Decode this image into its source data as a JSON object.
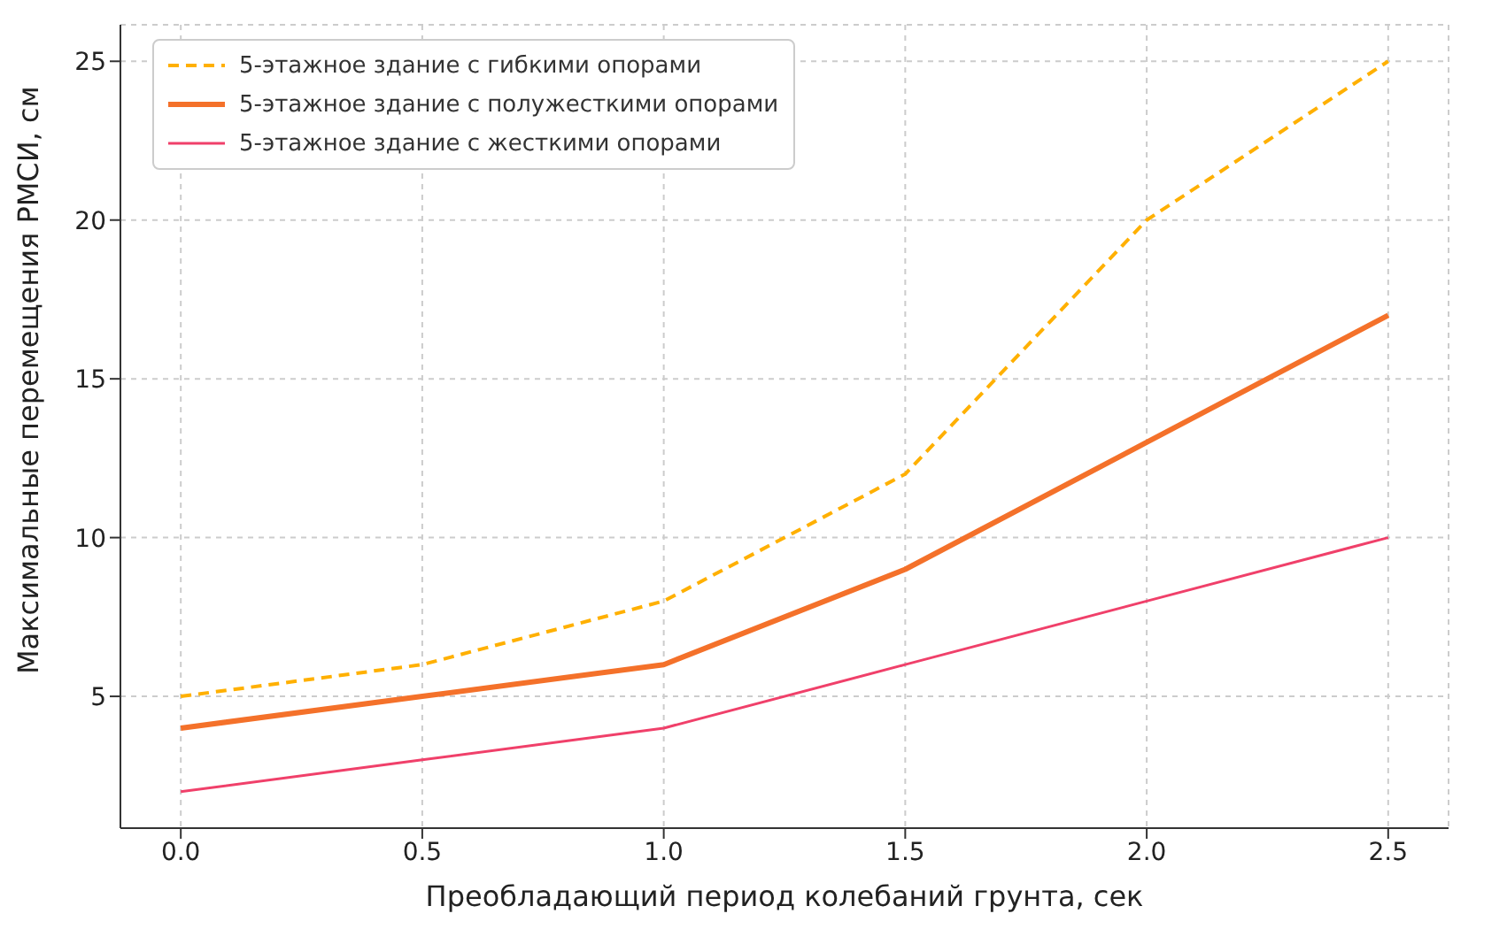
{
  "chart_data": {
    "type": "line",
    "xlabel": "Преобладающий период колебаний грунта, сек",
    "ylabel": "Максимальные перемещения РМСИ, см",
    "x": [
      0,
      0.5,
      1,
      1.5,
      2,
      2.5
    ],
    "series": [
      {
        "name": "5-этажное здание с гибкими опорами",
        "color": "#ffb000",
        "values": [
          5,
          6,
          8,
          12,
          20,
          25
        ],
        "line_style": "dashed"
      },
      {
        "name": "5-этажное здание с полужесткими опорами",
        "color": "#f4712a",
        "values": [
          4,
          5,
          6,
          9,
          13,
          17
        ],
        "line_style": "solid"
      },
      {
        "name": "5-этажное здание с жесткими опорами",
        "color": "#f0406a",
        "values": [
          2,
          3,
          4,
          6,
          8,
          10
        ],
        "line_style": "solid"
      }
    ],
    "xlim": [
      -0.125,
      2.625
    ],
    "xticks": [
      {
        "value": 0,
        "label": "0.0"
      },
      0.5,
      {
        "value": 1,
        "label": "1.0"
      },
      1.5,
      {
        "value": 2,
        "label": "2.0"
      },
      2.5
    ],
    "ylim": [
      0.85,
      26.15
    ],
    "yticks": [
      5,
      10,
      15,
      20,
      25
    ],
    "grid": true,
    "legend": "top left",
    "marker": "none"
  }
}
